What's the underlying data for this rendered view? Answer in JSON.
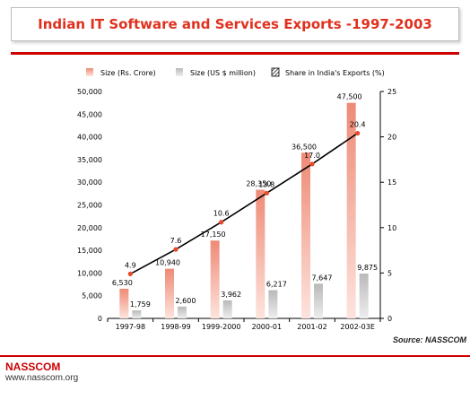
{
  "title": "Indian IT Software and Services Exports -1997-2003",
  "source": "Source: NASSCOM",
  "footer": {
    "org": "NASSCOM",
    "url": "www.nasscom.org"
  },
  "colors": {
    "rs": "#f19c8a",
    "usd": "#cfcfcf",
    "line": "#000000",
    "marker": "#e8492a",
    "title": "#e0301e",
    "accent": "#cc0000"
  },
  "chart_data": {
    "type": "bar",
    "categories": [
      "1997-98",
      "1998-99",
      "1999-2000",
      "2000-01",
      "2001-02",
      "2002-03E"
    ],
    "series": [
      {
        "name": "Size (Rs. Crore)",
        "values": [
          6530,
          10940,
          17150,
          28350,
          36500,
          47500
        ],
        "labels": [
          "6,530",
          "10,940",
          "17,150",
          "28,350",
          "36,500",
          "47,500"
        ],
        "axis": "left"
      },
      {
        "name": "Size (US $ million)",
        "values": [
          1759,
          2600,
          3962,
          6217,
          7647,
          9875
        ],
        "labels": [
          "1,759",
          "2,600",
          "3,962",
          "6,217",
          "7,647",
          "9,875"
        ],
        "axis": "left"
      },
      {
        "name": "Share in India's Exports (%)",
        "type": "line",
        "values": [
          4.9,
          7.6,
          10.6,
          13.8,
          17.0,
          20.4
        ],
        "labels": [
          "4.9",
          "7.6",
          "10.6",
          "13.8",
          "17.0",
          "20.4"
        ],
        "axis": "right"
      }
    ],
    "left_axis": {
      "ylim": [
        0,
        50000
      ],
      "ticks": [
        "0",
        "5,000",
        "10,000",
        "15,000",
        "20,000",
        "25,000",
        "30,000",
        "35,000",
        "40,000",
        "45,000",
        "50,000"
      ]
    },
    "right_axis": {
      "ylim": [
        0,
        25
      ],
      "ticks": [
        "0",
        "5",
        "10",
        "15",
        "20",
        "25"
      ]
    }
  }
}
